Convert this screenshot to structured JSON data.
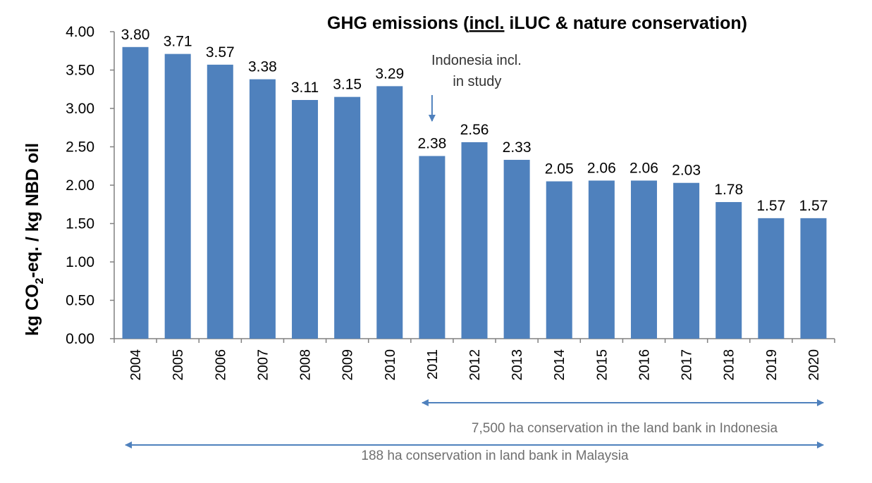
{
  "chart_data": {
    "type": "bar",
    "title": "GHG emissions (incl. iLUC &  nature conservation)",
    "title_parts": {
      "before": "GHG emissions (",
      "underlined": "incl.",
      "after": " iLUC &  nature conservation)"
    },
    "ylabel": {
      "prefix": "kg CO",
      "subscript": "2",
      "suffix": "-eq. / kg NBD oil"
    },
    "xlabel": "",
    "ylim": [
      0,
      4
    ],
    "yticks": [
      "0.00",
      "0.50",
      "1.00",
      "1.50",
      "2.00",
      "2.50",
      "3.00",
      "3.50",
      "4.00"
    ],
    "categories": [
      "2004",
      "2005",
      "2006",
      "2007",
      "2008",
      "2009",
      "2010",
      "2011",
      "2012",
      "2013",
      "2014",
      "2015",
      "2016",
      "2017",
      "2018",
      "2019",
      "2020"
    ],
    "values": [
      3.8,
      3.71,
      3.57,
      3.38,
      3.11,
      3.15,
      3.29,
      2.38,
      2.56,
      2.33,
      2.05,
      2.06,
      2.06,
      2.03,
      1.78,
      1.57,
      1.57
    ],
    "value_labels": [
      "3.80",
      "3.71",
      "3.57",
      "3.38",
      "3.11",
      "3.15",
      "3.29",
      "2.38",
      "2.56",
      "2.33",
      "2.05",
      "2.06",
      "2.06",
      "2.03",
      "1.78",
      "1.57",
      "1.57"
    ],
    "bar_color": "#4F81BD",
    "arrow_color": "#4F81BD",
    "grid": false,
    "legend": "none",
    "annotations": [
      {
        "lines": [
          "Indonesia incl.",
          "in study"
        ],
        "points_to": "2011"
      }
    ],
    "ranges": [
      {
        "from": "2011",
        "to": "2020",
        "label": "7,500 ha conservation in the land bank in Indonesia"
      },
      {
        "from": "2004",
        "to": "2020",
        "label": "188 ha conservation in land bank in Malaysia"
      }
    ]
  }
}
